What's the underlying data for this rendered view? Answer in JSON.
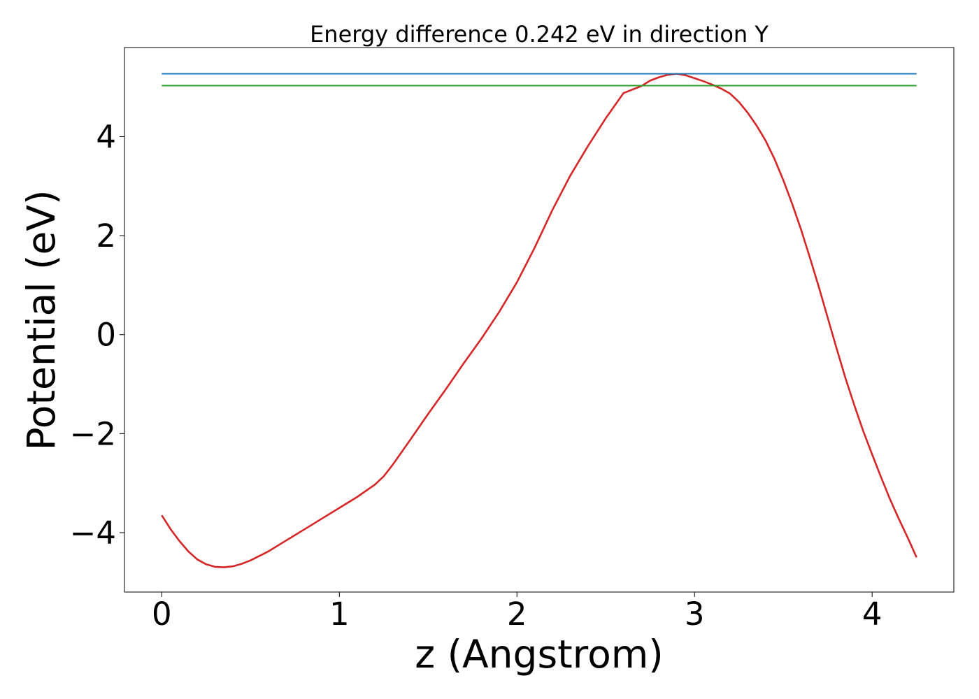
{
  "chart_data": {
    "type": "line",
    "title": "Energy difference 0.242 eV in direction Y",
    "xlabel": "z (Angstrom)",
    "ylabel": "Potential (eV)",
    "xlim": [
      -0.21,
      4.46
    ],
    "ylim": [
      -5.2,
      5.8
    ],
    "x_ticks": [
      0,
      1,
      2,
      3,
      4
    ],
    "x_tick_labels": [
      "0",
      "1",
      "2",
      "3",
      "4"
    ],
    "y_ticks": [
      -4,
      -2,
      0,
      2,
      4
    ],
    "y_tick_labels": [
      "−4",
      "−2",
      "0",
      "2",
      "4"
    ],
    "grid": false,
    "series": [
      {
        "color": "#d62728",
        "x": [
          0,
          0.05,
          0.1,
          0.15,
          0.2,
          0.25,
          0.3,
          0.35,
          0.4,
          0.45,
          0.5,
          0.6,
          0.7,
          0.8,
          0.9,
          1.0,
          1.1,
          1.2,
          1.25,
          1.3,
          1.4,
          1.5,
          1.6,
          1.7,
          1.8,
          1.9,
          2.0,
          2.1,
          2.2,
          2.3,
          2.4,
          2.5,
          2.6,
          2.7,
          2.75,
          2.8,
          2.85,
          2.9,
          2.95,
          3.0,
          3.05,
          3.1,
          3.15,
          3.2,
          3.25,
          3.3,
          3.35,
          3.4,
          3.45,
          3.5,
          3.55,
          3.6,
          3.65,
          3.7,
          3.75,
          3.8,
          3.85,
          3.9,
          3.95,
          4.0,
          4.05,
          4.1,
          4.15,
          4.2,
          4.25
        ],
        "y": [
          -3.65,
          -3.93,
          -4.17,
          -4.38,
          -4.54,
          -4.64,
          -4.69,
          -4.7,
          -4.68,
          -4.63,
          -4.56,
          -4.38,
          -4.16,
          -3.94,
          -3.72,
          -3.5,
          -3.28,
          -3.03,
          -2.86,
          -2.63,
          -2.12,
          -1.6,
          -1.1,
          -0.58,
          -0.08,
          0.46,
          1.06,
          1.76,
          2.52,
          3.21,
          3.81,
          4.37,
          4.88,
          5.02,
          5.13,
          5.2,
          5.25,
          5.27,
          5.24,
          5.18,
          5.12,
          5.05,
          4.97,
          4.87,
          4.7,
          4.48,
          4.22,
          3.92,
          3.55,
          3.12,
          2.64,
          2.12,
          1.55,
          0.96,
          0.34,
          -0.28,
          -0.88,
          -1.43,
          -1.95,
          -2.42,
          -2.88,
          -3.32,
          -3.72,
          -4.1,
          -4.5
        ]
      },
      {
        "color": "#1f77b4",
        "x": [
          0,
          4.25
        ],
        "y": [
          5.27,
          5.27
        ]
      },
      {
        "color": "#2ca02c",
        "x": [
          0,
          4.25
        ],
        "y": [
          5.03,
          5.03
        ]
      }
    ]
  }
}
